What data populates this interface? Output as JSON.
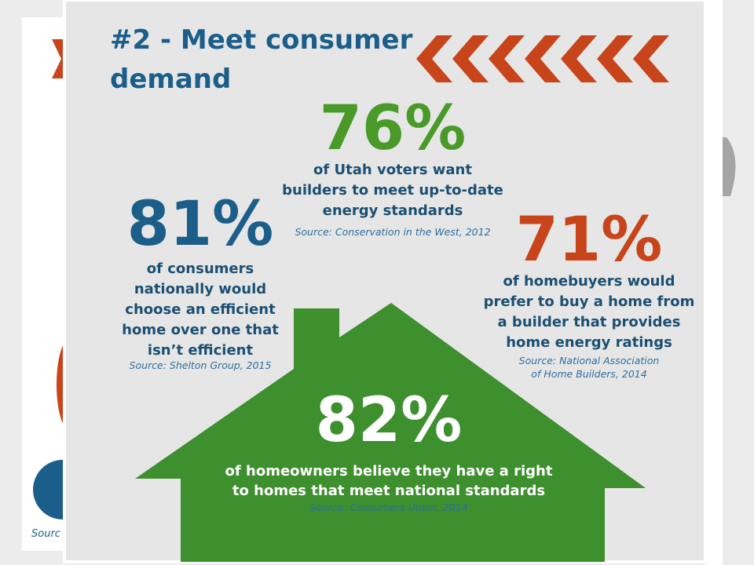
{
  "background": {
    "source_fragment": "Sourc"
  },
  "title": {
    "line1": "#2 - Meet consumer",
    "line2": "demand"
  },
  "stats": [
    {
      "stat": "76%",
      "lines": [
        "of Utah voters want",
        "builders to meet up-to-date",
        "energy standards"
      ],
      "source": [
        "Source: Conservation in the West, 2012"
      ]
    },
    {
      "stat": "81%",
      "lines": [
        "of consumers",
        "nationally would",
        "choose an efficient",
        "home over one that",
        "isn’t efficient"
      ],
      "source": [
        "Source: Shelton Group, 2015"
      ]
    },
    {
      "stat": "71%",
      "lines": [
        "of homebuyers would",
        "prefer to buy a home from",
        "a builder that provides",
        "home energy ratings"
      ],
      "source": [
        "Source: National Association",
        "of Home Builders, 2014"
      ]
    },
    {
      "stat": "82%",
      "lines": [
        "of homeowners believe they have a right",
        "to homes that meet national standards"
      ],
      "source": [
        "Source: Consumers Union, 2014"
      ]
    }
  ]
}
